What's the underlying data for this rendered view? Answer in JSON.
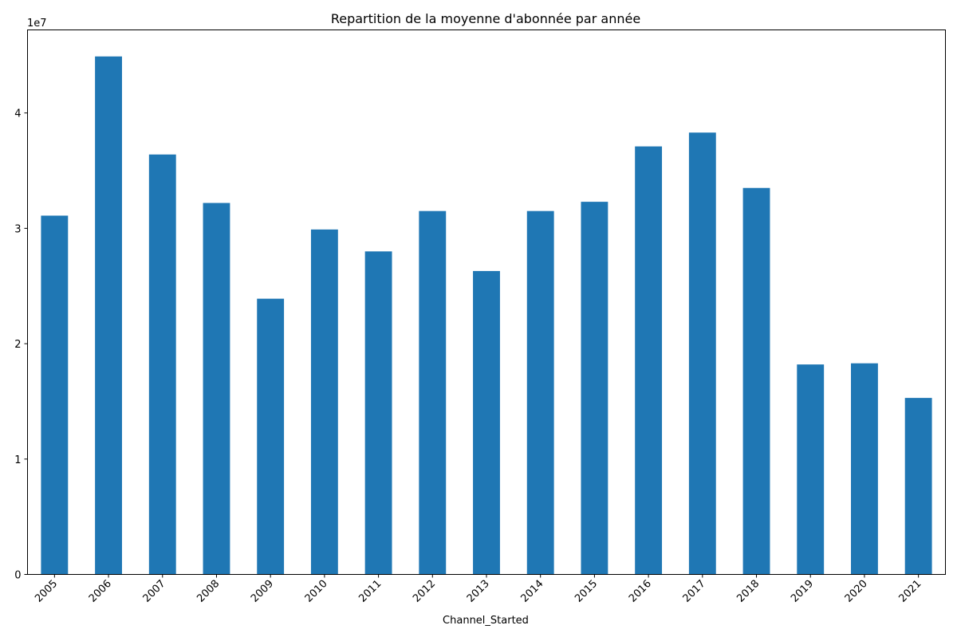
{
  "chart_data": {
    "type": "bar",
    "title": "Repartition de la moyenne d'abonnée par année",
    "xlabel": "Channel_Started",
    "ylabel": "",
    "y_offset_label": "1e7",
    "categories": [
      "2005",
      "2006",
      "2007",
      "2008",
      "2009",
      "2010",
      "2011",
      "2012",
      "2013",
      "2014",
      "2015",
      "2016",
      "2017",
      "2018",
      "2019",
      "2020",
      "2021"
    ],
    "values": [
      31100000,
      44900000,
      36400000,
      32200000,
      23900000,
      29900000,
      28000000,
      31500000,
      26300000,
      31500000,
      32300000,
      37100000,
      38300000,
      33500000,
      18200000,
      18300000,
      15300000
    ],
    "y_ticks": [
      0,
      10000000,
      20000000,
      30000000,
      40000000
    ],
    "y_tick_labels": [
      "0",
      "1",
      "2",
      "3",
      "4"
    ],
    "ylim": [
      0,
      47200000
    ],
    "grid": false,
    "legend": "none",
    "bar_color": "#1f77b4"
  }
}
